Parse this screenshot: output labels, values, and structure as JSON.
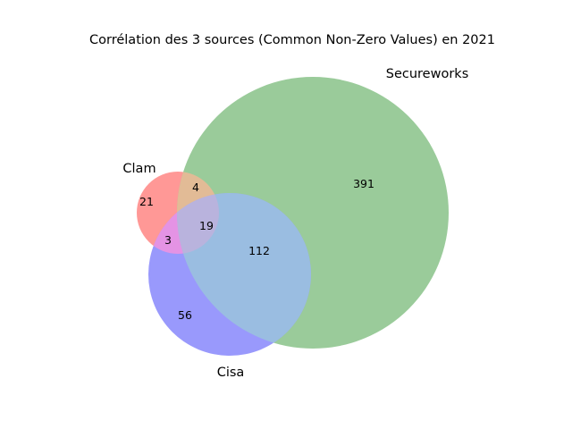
{
  "title": "Corrélation des 3 sources (Common Non-Zero Values) en 2021",
  "sets": {
    "clam": {
      "label": "Clam",
      "color": "#ff0000"
    },
    "secureworks": {
      "label": "Secureworks",
      "color": "#008000"
    },
    "cisa": {
      "label": "Cisa",
      "color": "#0000ff"
    }
  },
  "regions": {
    "clam_only": "21",
    "clam_secureworks": "4",
    "secureworks_only": "391",
    "all_three": "19",
    "clam_cisa": "3",
    "secureworks_cisa": "112",
    "cisa_only": "56"
  }
}
